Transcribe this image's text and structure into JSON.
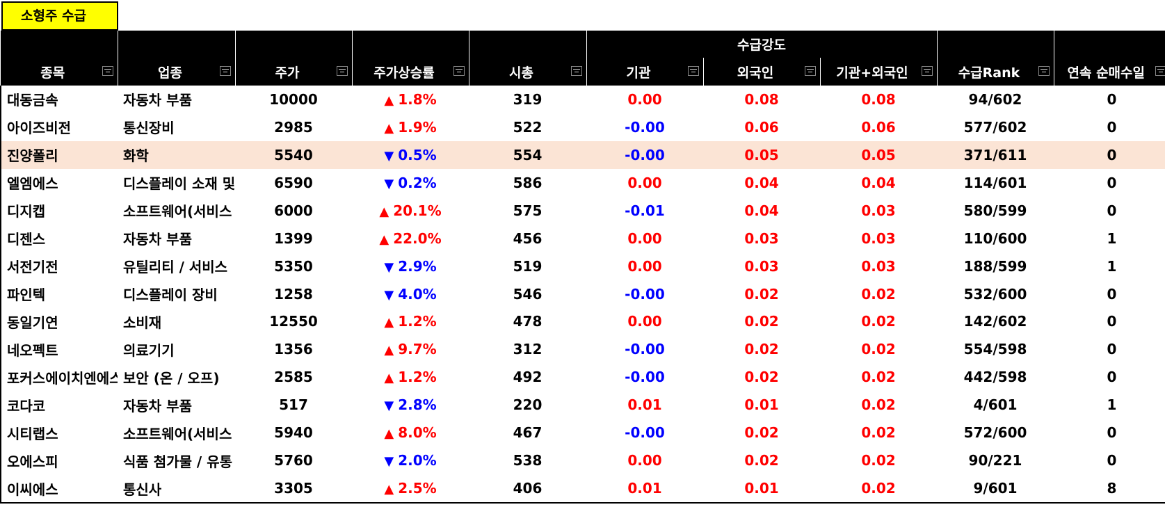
{
  "sheet": {
    "title": "소형주 수급"
  },
  "header": {
    "group_label": "수급강도",
    "columns": [
      "종목",
      "업종",
      "주가",
      "주가상승률",
      "시총",
      "기관",
      "외국인",
      "기관+외국인",
      "수급Rank",
      "연속 순매수일"
    ]
  },
  "colors": {
    "up": "#ff0000",
    "down": "#0000ff",
    "selected_row": "#fbe4d5",
    "tab": "#ffff00"
  },
  "rows": [
    {
      "name": "대동금속",
      "sector": "자동차 부품",
      "price": "10000",
      "dir": "up",
      "change": "1.8%",
      "mcap": "319",
      "inst": "0.00",
      "foreign": "0.08",
      "sum": "0.08",
      "rank": "94/602",
      "days": "0"
    },
    {
      "name": "아이즈비전",
      "sector": "통신장비",
      "price": "2985",
      "dir": "up",
      "change": "1.9%",
      "mcap": "522",
      "inst": "-0.00",
      "foreign": "0.06",
      "sum": "0.06",
      "rank": "577/602",
      "days": "0"
    },
    {
      "name": "진양폴리",
      "sector": "화학",
      "price": "5540",
      "dir": "down",
      "change": "0.5%",
      "mcap": "554",
      "inst": "-0.00",
      "foreign": "0.05",
      "sum": "0.05",
      "rank": "371/611",
      "days": "0",
      "selected": true
    },
    {
      "name": "엘엠에스",
      "sector": "디스플레이 소재 및",
      "price": "6590",
      "dir": "down",
      "change": "0.2%",
      "mcap": "586",
      "inst": "0.00",
      "foreign": "0.04",
      "sum": "0.04",
      "rank": "114/601",
      "days": "0"
    },
    {
      "name": "디지캡",
      "sector": "소프트웨어(서비스",
      "price": "6000",
      "dir": "up",
      "change": "20.1%",
      "mcap": "575",
      "inst": "-0.01",
      "foreign": "0.04",
      "sum": "0.03",
      "rank": "580/599",
      "days": "0"
    },
    {
      "name": "디젠스",
      "sector": "자동차 부품",
      "price": "1399",
      "dir": "up",
      "change": "22.0%",
      "mcap": "456",
      "inst": "0.00",
      "foreign": "0.03",
      "sum": "0.03",
      "rank": "110/600",
      "days": "1"
    },
    {
      "name": "서전기전",
      "sector": "유틸리티 / 서비스",
      "price": "5350",
      "dir": "down",
      "change": "2.9%",
      "mcap": "519",
      "inst": "0.00",
      "foreign": "0.03",
      "sum": "0.03",
      "rank": "188/599",
      "days": "1"
    },
    {
      "name": "파인텍",
      "sector": "디스플레이 장비",
      "price": "1258",
      "dir": "down",
      "change": "4.0%",
      "mcap": "546",
      "inst": "-0.00",
      "foreign": "0.02",
      "sum": "0.02",
      "rank": "532/600",
      "days": "0"
    },
    {
      "name": "동일기연",
      "sector": "소비재",
      "price": "12550",
      "dir": "up",
      "change": "1.2%",
      "mcap": "478",
      "inst": "0.00",
      "foreign": "0.02",
      "sum": "0.02",
      "rank": "142/602",
      "days": "0"
    },
    {
      "name": "네오펙트",
      "sector": "의료기기",
      "price": "1356",
      "dir": "up",
      "change": "9.7%",
      "mcap": "312",
      "inst": "-0.00",
      "foreign": "0.02",
      "sum": "0.02",
      "rank": "554/598",
      "days": "0"
    },
    {
      "name": "포커스에이치엔에스",
      "sector": "보안 (온 / 오프)",
      "price": "2585",
      "dir": "up",
      "change": "1.2%",
      "mcap": "492",
      "inst": "-0.00",
      "foreign": "0.02",
      "sum": "0.02",
      "rank": "442/598",
      "days": "0"
    },
    {
      "name": "코다코",
      "sector": "자동차 부품",
      "price": "517",
      "dir": "down",
      "change": "2.8%",
      "mcap": "220",
      "inst": "0.01",
      "foreign": "0.01",
      "sum": "0.02",
      "rank": "4/601",
      "days": "1"
    },
    {
      "name": "시티랩스",
      "sector": "소프트웨어(서비스",
      "price": "5940",
      "dir": "up",
      "change": "8.0%",
      "mcap": "467",
      "inst": "-0.00",
      "foreign": "0.02",
      "sum": "0.02",
      "rank": "572/600",
      "days": "0"
    },
    {
      "name": "오에스피",
      "sector": "식품 첨가물 / 유통",
      "price": "5760",
      "dir": "down",
      "change": "2.0%",
      "mcap": "538",
      "inst": "0.00",
      "foreign": "0.02",
      "sum": "0.02",
      "rank": "90/221",
      "days": "0"
    },
    {
      "name": "이씨에스",
      "sector": "통신사",
      "price": "3305",
      "dir": "up",
      "change": "2.5%",
      "mcap": "406",
      "inst": "0.01",
      "foreign": "0.01",
      "sum": "0.02",
      "rank": "9/601",
      "days": "8"
    }
  ]
}
